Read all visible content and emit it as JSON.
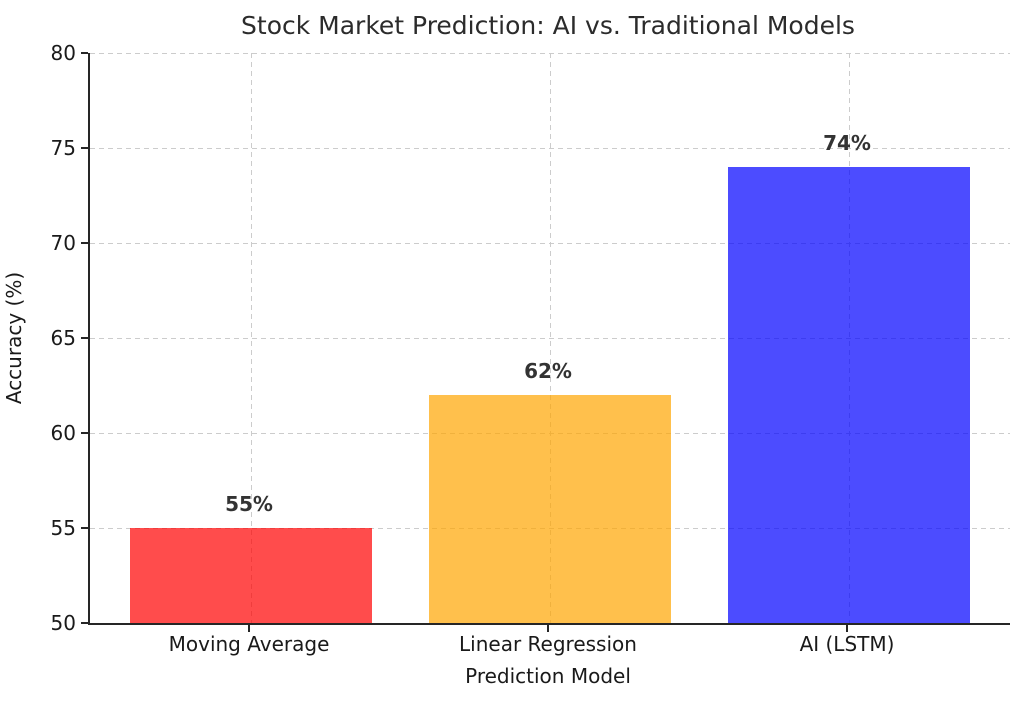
{
  "chart_data": {
    "type": "bar",
    "title": "Stock Market Prediction: AI vs. Traditional Models",
    "xlabel": "Prediction Model",
    "ylabel": "Accuracy (%)",
    "categories": [
      "Moving Average",
      "Linear Regression",
      "AI (LSTM)"
    ],
    "values": [
      55,
      62,
      74
    ],
    "value_labels": [
      "55%",
      "62%",
      "74%"
    ],
    "bar_colors": [
      "rgba(255,0,0,0.7)",
      "rgba(255,165,0,0.7)",
      "rgba(0,0,255,0.7)"
    ],
    "bar_colors_rendered_hex": [
      "#ff4c4c",
      "#ffc04c",
      "#4c4cff"
    ],
    "ylim": [
      50,
      80
    ],
    "yticks": [
      50,
      55,
      60,
      65,
      70,
      75,
      80
    ],
    "grid": "dashed gridlines on both x and y ticks",
    "legend": "none"
  },
  "style_colors": {
    "background": "#ffffff",
    "grid": "#cccccc",
    "spine": "#262626",
    "title_text": "#2b2b2b",
    "tick_text": "#1a1a1a",
    "value_label_text": "#333333"
  }
}
